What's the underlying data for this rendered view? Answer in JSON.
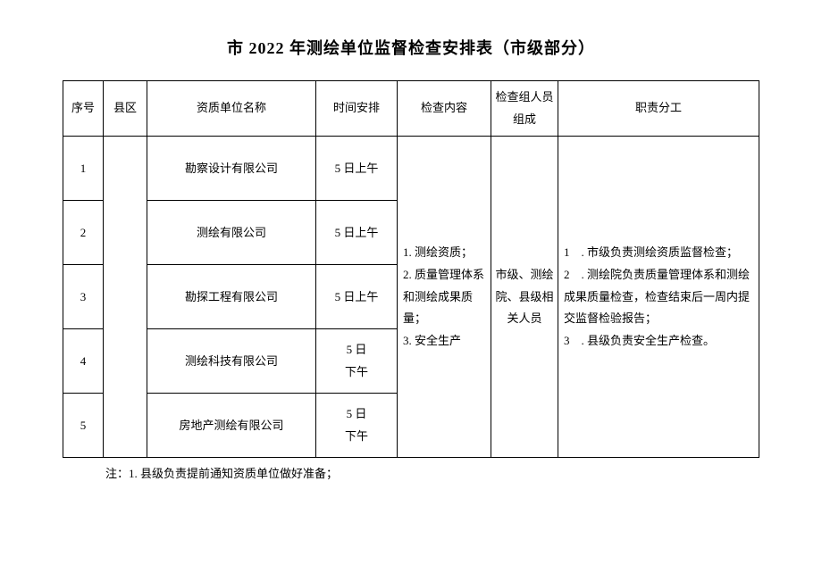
{
  "title": "市 2022 年测绘单位监督检查安排表（市级部分）",
  "headers": {
    "idx": "序号",
    "district": "县区",
    "unit": "资质单位名称",
    "time": "时间安排",
    "content": "检查内容",
    "team": "检查组人员组成",
    "duty": "职责分工"
  },
  "rows": [
    {
      "idx": "1",
      "unit": "勘察设计有限公司",
      "time": "5 日上午"
    },
    {
      "idx": "2",
      "unit": "测绘有限公司",
      "time": "5 日上午"
    },
    {
      "idx": "3",
      "unit": "勘探工程有限公司",
      "time": "5 日上午"
    },
    {
      "idx": "4",
      "unit": "测绘科技有限公司",
      "time": "5 日\n下午"
    },
    {
      "idx": "5",
      "unit": "房地产测绘有限公司",
      "time": "5 日\n下午"
    }
  ],
  "district_merged": "",
  "check_content": "1. 测绘资质；\n2. 质量管理体系和测绘成果质量；\n3. 安全生产",
  "team_merged": "市级、测绘院、县级相关人员",
  "duty_merged": "1 . 市级负责测绘资质监督检查；\n2 . 测绘院负责质量管理体系和测绘成果质量检查，检查结束后一周内提交监督检验报告；\n3 . 县级负责安全生产检查。",
  "footnote": "注：1. 县级负责提前通知资质单位做好准备；"
}
